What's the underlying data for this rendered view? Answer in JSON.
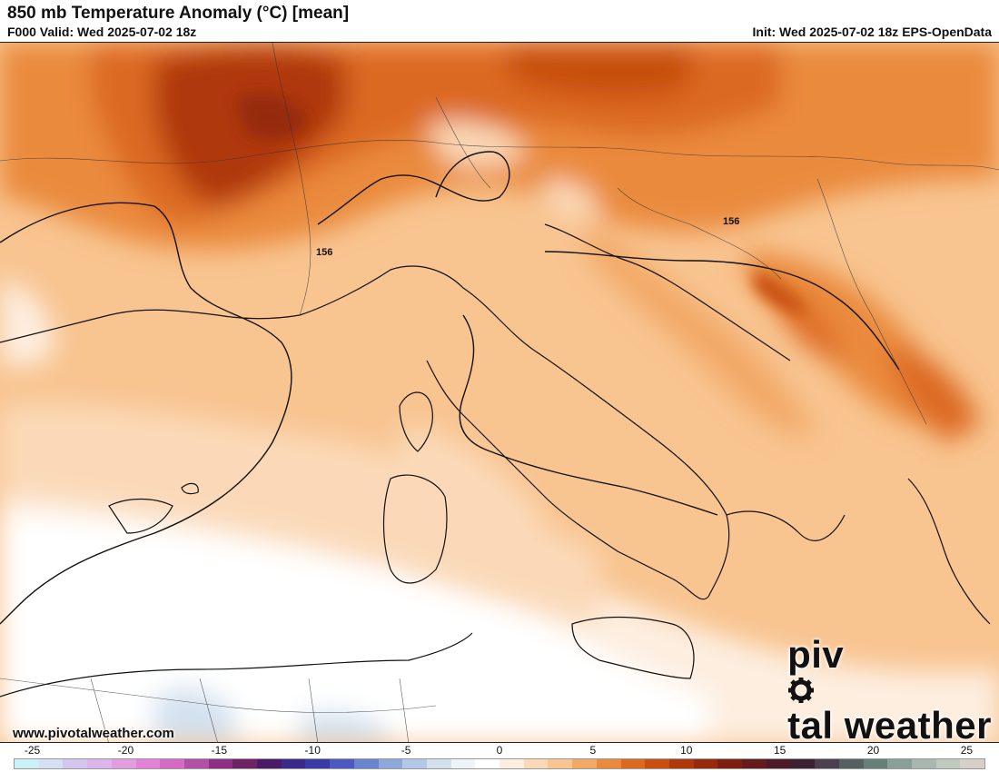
{
  "header": {
    "title": "850 mb Temperature Anomaly (°C) [mean]",
    "valid": "F000 Valid: Wed 2025-07-02 18z",
    "init": "Init: Wed 2025-07-02 18z EPS-OpenData"
  },
  "map": {
    "contour_labels": [
      "156",
      "156"
    ]
  },
  "footer": {
    "website": "www.pivotalweather.com",
    "brand_left": "piv",
    "brand_right": "tal weather"
  },
  "legend": {
    "ticks": [
      "-25",
      "-20",
      "-15",
      "-10",
      "-5",
      "0",
      "5",
      "10",
      "15",
      "20",
      "25"
    ],
    "tick_values": [
      -25,
      -20,
      -15,
      -10,
      -5,
      0,
      5,
      10,
      15,
      20,
      25
    ],
    "range": [
      -26,
      26
    ],
    "colors": [
      "#c9f1f7",
      "#d6e0f5",
      "#d4c6ef",
      "#dcb5ea",
      "#e39ce0",
      "#e283d8",
      "#d56bc6",
      "#b24fa6",
      "#8d2f87",
      "#6d2364",
      "#4a1a66",
      "#3b2a8a",
      "#3a3aa6",
      "#4a5ac0",
      "#6a85d0",
      "#8fa8dc",
      "#b3c7e6",
      "#d3e1ef",
      "#eef3f8",
      "#ffffff",
      "#fdeee0",
      "#fbd9b8",
      "#f8c490",
      "#f2a866",
      "#ea8a3e",
      "#dc6920",
      "#c84f10",
      "#b0390c",
      "#962a0c",
      "#7c1e10",
      "#661a1e",
      "#4e1a2a",
      "#3c2230",
      "#4a4050",
      "#556060",
      "#668078",
      "#88a098",
      "#a8b8b0",
      "#c0c8c0",
      "#d6d0c8"
    ]
  }
}
